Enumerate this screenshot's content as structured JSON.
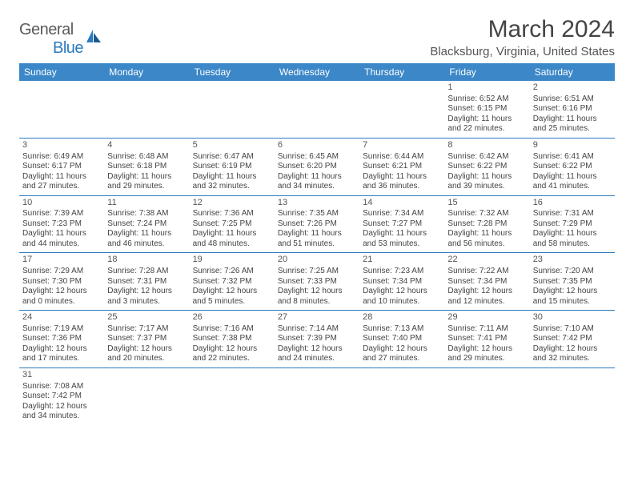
{
  "logo": {
    "general": "General",
    "blue": "Blue"
  },
  "title": "March 2024",
  "location": "Blacksburg, Virginia, United States",
  "columns": [
    "Sunday",
    "Monday",
    "Tuesday",
    "Wednesday",
    "Thursday",
    "Friday",
    "Saturday"
  ],
  "colors": {
    "header_bg": "#3b87c8",
    "header_text": "#ffffff",
    "rule": "#2b7abf",
    "text": "#444444",
    "title": "#444444"
  },
  "weeks": [
    [
      null,
      null,
      null,
      null,
      null,
      {
        "d": "1",
        "sr": "Sunrise: 6:52 AM",
        "ss": "Sunset: 6:15 PM",
        "dl1": "Daylight: 11 hours",
        "dl2": "and 22 minutes."
      },
      {
        "d": "2",
        "sr": "Sunrise: 6:51 AM",
        "ss": "Sunset: 6:16 PM",
        "dl1": "Daylight: 11 hours",
        "dl2": "and 25 minutes."
      }
    ],
    [
      {
        "d": "3",
        "sr": "Sunrise: 6:49 AM",
        "ss": "Sunset: 6:17 PM",
        "dl1": "Daylight: 11 hours",
        "dl2": "and 27 minutes."
      },
      {
        "d": "4",
        "sr": "Sunrise: 6:48 AM",
        "ss": "Sunset: 6:18 PM",
        "dl1": "Daylight: 11 hours",
        "dl2": "and 29 minutes."
      },
      {
        "d": "5",
        "sr": "Sunrise: 6:47 AM",
        "ss": "Sunset: 6:19 PM",
        "dl1": "Daylight: 11 hours",
        "dl2": "and 32 minutes."
      },
      {
        "d": "6",
        "sr": "Sunrise: 6:45 AM",
        "ss": "Sunset: 6:20 PM",
        "dl1": "Daylight: 11 hours",
        "dl2": "and 34 minutes."
      },
      {
        "d": "7",
        "sr": "Sunrise: 6:44 AM",
        "ss": "Sunset: 6:21 PM",
        "dl1": "Daylight: 11 hours",
        "dl2": "and 36 minutes."
      },
      {
        "d": "8",
        "sr": "Sunrise: 6:42 AM",
        "ss": "Sunset: 6:22 PM",
        "dl1": "Daylight: 11 hours",
        "dl2": "and 39 minutes."
      },
      {
        "d": "9",
        "sr": "Sunrise: 6:41 AM",
        "ss": "Sunset: 6:22 PM",
        "dl1": "Daylight: 11 hours",
        "dl2": "and 41 minutes."
      }
    ],
    [
      {
        "d": "10",
        "sr": "Sunrise: 7:39 AM",
        "ss": "Sunset: 7:23 PM",
        "dl1": "Daylight: 11 hours",
        "dl2": "and 44 minutes."
      },
      {
        "d": "11",
        "sr": "Sunrise: 7:38 AM",
        "ss": "Sunset: 7:24 PM",
        "dl1": "Daylight: 11 hours",
        "dl2": "and 46 minutes."
      },
      {
        "d": "12",
        "sr": "Sunrise: 7:36 AM",
        "ss": "Sunset: 7:25 PM",
        "dl1": "Daylight: 11 hours",
        "dl2": "and 48 minutes."
      },
      {
        "d": "13",
        "sr": "Sunrise: 7:35 AM",
        "ss": "Sunset: 7:26 PM",
        "dl1": "Daylight: 11 hours",
        "dl2": "and 51 minutes."
      },
      {
        "d": "14",
        "sr": "Sunrise: 7:34 AM",
        "ss": "Sunset: 7:27 PM",
        "dl1": "Daylight: 11 hours",
        "dl2": "and 53 minutes."
      },
      {
        "d": "15",
        "sr": "Sunrise: 7:32 AM",
        "ss": "Sunset: 7:28 PM",
        "dl1": "Daylight: 11 hours",
        "dl2": "and 56 minutes."
      },
      {
        "d": "16",
        "sr": "Sunrise: 7:31 AM",
        "ss": "Sunset: 7:29 PM",
        "dl1": "Daylight: 11 hours",
        "dl2": "and 58 minutes."
      }
    ],
    [
      {
        "d": "17",
        "sr": "Sunrise: 7:29 AM",
        "ss": "Sunset: 7:30 PM",
        "dl1": "Daylight: 12 hours",
        "dl2": "and 0 minutes."
      },
      {
        "d": "18",
        "sr": "Sunrise: 7:28 AM",
        "ss": "Sunset: 7:31 PM",
        "dl1": "Daylight: 12 hours",
        "dl2": "and 3 minutes."
      },
      {
        "d": "19",
        "sr": "Sunrise: 7:26 AM",
        "ss": "Sunset: 7:32 PM",
        "dl1": "Daylight: 12 hours",
        "dl2": "and 5 minutes."
      },
      {
        "d": "20",
        "sr": "Sunrise: 7:25 AM",
        "ss": "Sunset: 7:33 PM",
        "dl1": "Daylight: 12 hours",
        "dl2": "and 8 minutes."
      },
      {
        "d": "21",
        "sr": "Sunrise: 7:23 AM",
        "ss": "Sunset: 7:34 PM",
        "dl1": "Daylight: 12 hours",
        "dl2": "and 10 minutes."
      },
      {
        "d": "22",
        "sr": "Sunrise: 7:22 AM",
        "ss": "Sunset: 7:34 PM",
        "dl1": "Daylight: 12 hours",
        "dl2": "and 12 minutes."
      },
      {
        "d": "23",
        "sr": "Sunrise: 7:20 AM",
        "ss": "Sunset: 7:35 PM",
        "dl1": "Daylight: 12 hours",
        "dl2": "and 15 minutes."
      }
    ],
    [
      {
        "d": "24",
        "sr": "Sunrise: 7:19 AM",
        "ss": "Sunset: 7:36 PM",
        "dl1": "Daylight: 12 hours",
        "dl2": "and 17 minutes."
      },
      {
        "d": "25",
        "sr": "Sunrise: 7:17 AM",
        "ss": "Sunset: 7:37 PM",
        "dl1": "Daylight: 12 hours",
        "dl2": "and 20 minutes."
      },
      {
        "d": "26",
        "sr": "Sunrise: 7:16 AM",
        "ss": "Sunset: 7:38 PM",
        "dl1": "Daylight: 12 hours",
        "dl2": "and 22 minutes."
      },
      {
        "d": "27",
        "sr": "Sunrise: 7:14 AM",
        "ss": "Sunset: 7:39 PM",
        "dl1": "Daylight: 12 hours",
        "dl2": "and 24 minutes."
      },
      {
        "d": "28",
        "sr": "Sunrise: 7:13 AM",
        "ss": "Sunset: 7:40 PM",
        "dl1": "Daylight: 12 hours",
        "dl2": "and 27 minutes."
      },
      {
        "d": "29",
        "sr": "Sunrise: 7:11 AM",
        "ss": "Sunset: 7:41 PM",
        "dl1": "Daylight: 12 hours",
        "dl2": "and 29 minutes."
      },
      {
        "d": "30",
        "sr": "Sunrise: 7:10 AM",
        "ss": "Sunset: 7:42 PM",
        "dl1": "Daylight: 12 hours",
        "dl2": "and 32 minutes."
      }
    ],
    [
      {
        "d": "31",
        "sr": "Sunrise: 7:08 AM",
        "ss": "Sunset: 7:42 PM",
        "dl1": "Daylight: 12 hours",
        "dl2": "and 34 minutes."
      },
      null,
      null,
      null,
      null,
      null,
      null
    ]
  ]
}
